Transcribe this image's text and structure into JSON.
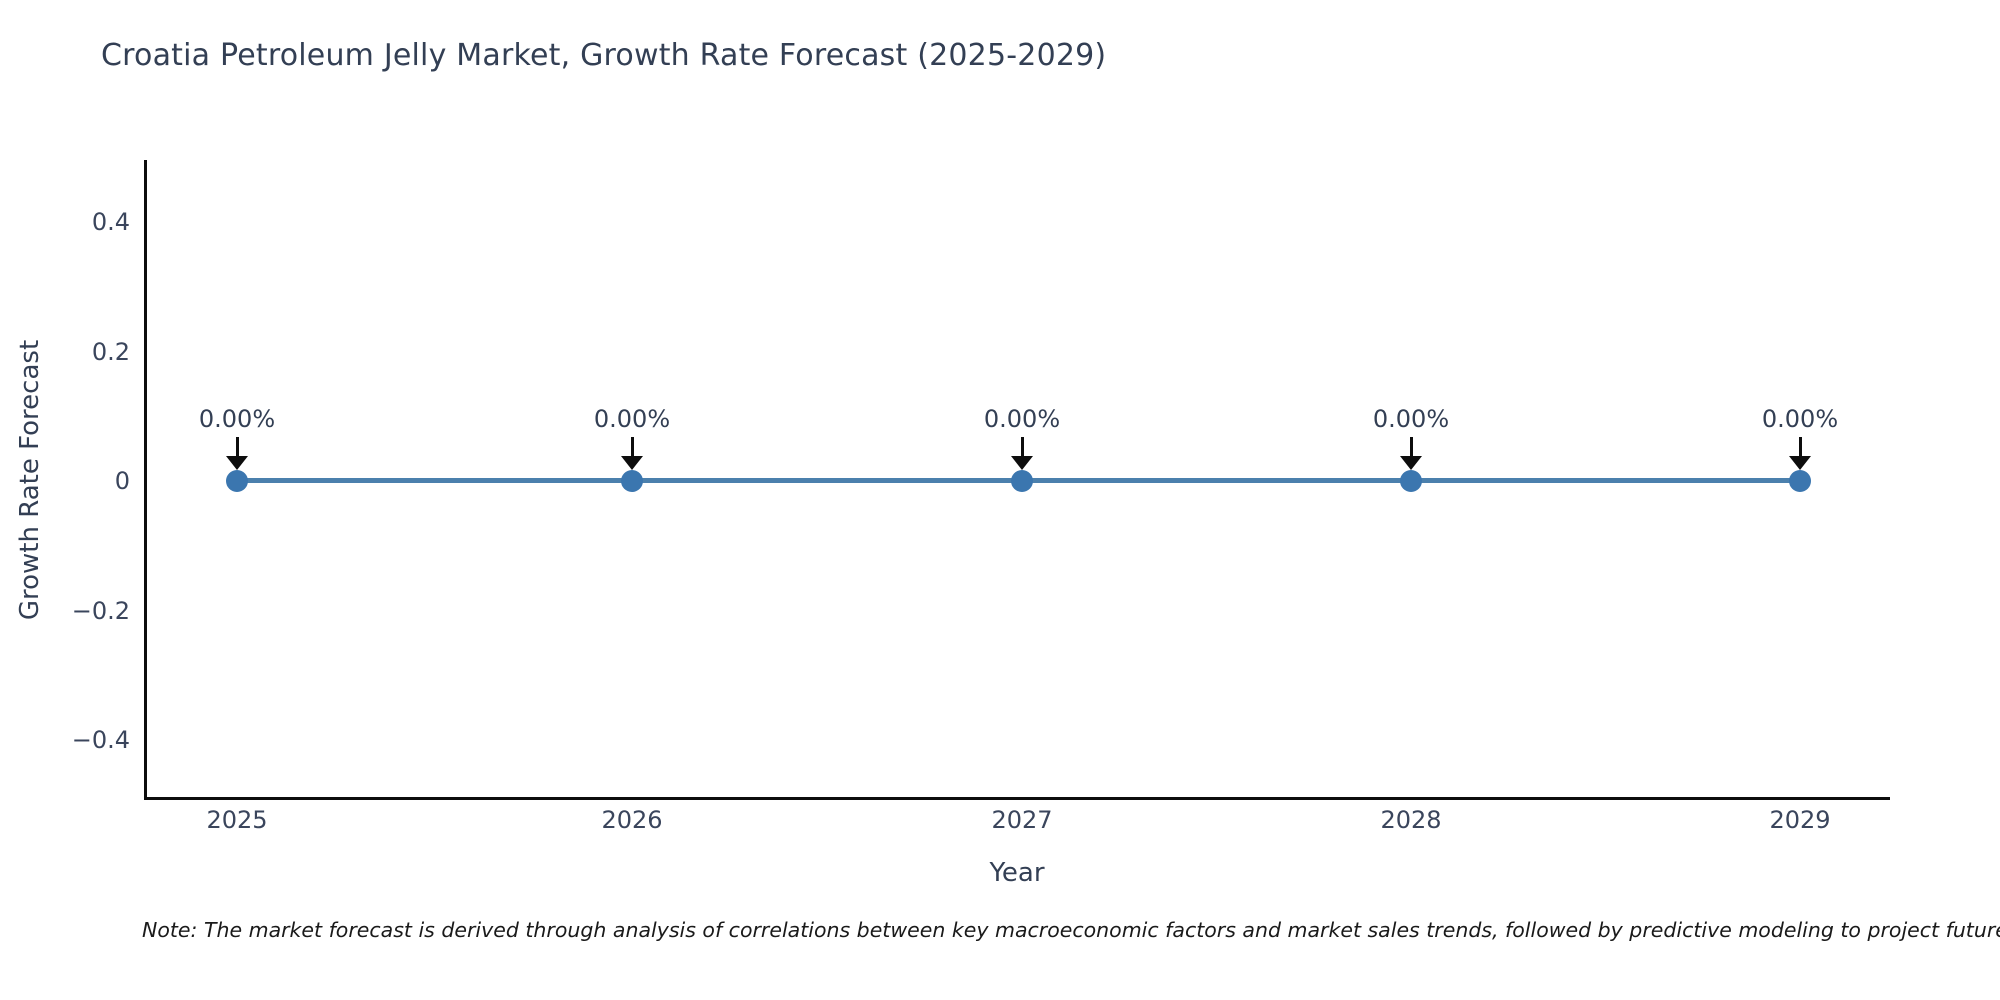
{
  "chart_data": {
    "type": "line",
    "title": "Croatia Petroleum Jelly Market, Growth Rate Forecast (2025-2029)",
    "xlabel": "Year",
    "ylabel": "Growth Rate Forecast",
    "categories": [
      "2025",
      "2026",
      "2027",
      "2028",
      "2029"
    ],
    "series": [
      {
        "name": "Growth Rate Forecast",
        "values": [
          0,
          0,
          0,
          0,
          0
        ]
      }
    ],
    "point_labels": [
      "0.00%",
      "0.00%",
      "0.00%",
      "0.00%",
      "0.00%"
    ],
    "yticks": [
      "0.4",
      "0.2",
      "0",
      "−0.2",
      "−0.4"
    ],
    "ylim": [
      -0.5,
      0.5
    ],
    "grid": false,
    "legend_position": "none",
    "annotation_arrow": "down",
    "colors": {
      "line": "#4b80ad",
      "marker": "#3b76af",
      "axis": "#0d0d0d",
      "text": "#333f54",
      "note_text": "#1a1a1a",
      "background": "#ffffff"
    }
  },
  "footer": {
    "note_text": "Note: The market forecast is derived through analysis of correlations between key macroeconomic factors and market sales trends, followed by predictive modeling to project future sa"
  }
}
